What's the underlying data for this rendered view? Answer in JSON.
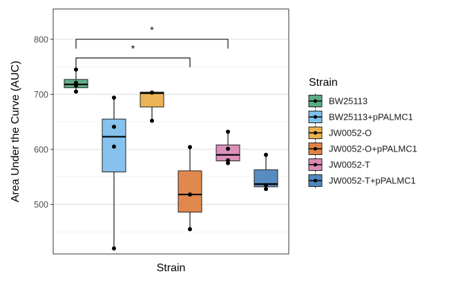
{
  "chart_data": {
    "type": "box",
    "xlabel": "Strain",
    "ylabel": "Area Under the Curve (AUC)",
    "ylim": [
      410,
      855
    ],
    "y_ticks": [
      500,
      600,
      700,
      800
    ],
    "x_ticks": [],
    "grid": true,
    "legend": {
      "title": "Strain",
      "position": "right"
    },
    "series": [
      {
        "name": "BW25113",
        "color": "#5aab84",
        "box": {
          "min": 705,
          "q1": 712,
          "median": 718,
          "q3": 727,
          "max": 745
        },
        "points": [
          745,
          721,
          716,
          705
        ]
      },
      {
        "name": "BW25113+pPALMC1",
        "color": "#7fbfec",
        "box": {
          "min": 420,
          "q1": 559,
          "median": 623,
          "q3": 655,
          "max": 694
        },
        "points": [
          694,
          641,
          605,
          420
        ]
      },
      {
        "name": "JW0052-O",
        "color": "#e9b04d",
        "box": {
          "min": 652,
          "q1": 677,
          "median": 702,
          "q3": 704,
          "max": 704
        },
        "points": [
          703,
          652
        ]
      },
      {
        "name": "JW0052-O+pPALMC1",
        "color": "#df8244",
        "box": {
          "min": 455,
          "q1": 486,
          "median": 518,
          "q3": 561,
          "max": 605
        },
        "points": [
          604,
          518,
          455
        ]
      },
      {
        "name": "JW0052-T",
        "color": "#d98ab6",
        "box": {
          "min": 575,
          "q1": 579,
          "median": 590,
          "q3": 608,
          "max": 632
        },
        "points": [
          632,
          601,
          580,
          575
        ]
      },
      {
        "name": "JW0052-T+pPALMC1",
        "color": "#4f86bd",
        "box": {
          "min": 528,
          "q1": 532,
          "median": 537,
          "q3": 563,
          "max": 590
        },
        "points": [
          590,
          535,
          528
        ]
      }
    ],
    "annotations": [
      {
        "from": "BW25113",
        "to": "JW0052-T",
        "label": "*",
        "y": 800,
        "tick_end": 783
      },
      {
        "from": "BW25113",
        "to": "JW0052-O+pPALMC1",
        "label": "*",
        "y": 766,
        "tick_end": 749
      }
    ]
  }
}
